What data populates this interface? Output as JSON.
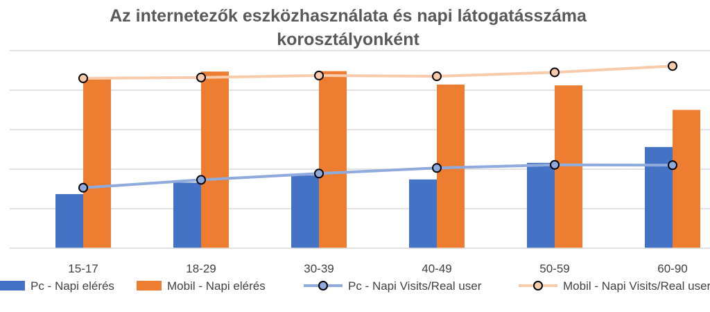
{
  "chart_data": {
    "type": "bar",
    "title": [
      "Az internetezők eszközhasználata és napi látogatásszáma",
      "korosztályonként"
    ],
    "categories": [
      "15-17",
      "18-29",
      "30-39",
      "40-49",
      "50-59",
      "60-90"
    ],
    "ylim": [
      0,
      5
    ],
    "grid": true,
    "legend_position": "bottom",
    "bar_series": [
      {
        "name": "Pc - Napi elérés",
        "color": "#4472C4",
        "values": [
          1.37,
          1.66,
          1.84,
          1.74,
          2.16,
          2.56
        ]
      },
      {
        "name": "Mobil - Napi elérés",
        "color": "#ED7D31",
        "values": [
          4.27,
          4.47,
          4.48,
          4.14,
          4.12,
          3.5
        ]
      }
    ],
    "line_series": [
      {
        "name": "Pc - Napi Visits/Real user",
        "color": "#8FAADC",
        "values": [
          1.53,
          1.73,
          1.89,
          2.03,
          2.11,
          2.1
        ]
      },
      {
        "name": "Mobil - Napi Visits/Real user",
        "color": "#F8CBAD",
        "values": [
          4.3,
          4.32,
          4.37,
          4.35,
          4.45,
          4.61
        ]
      }
    ]
  }
}
